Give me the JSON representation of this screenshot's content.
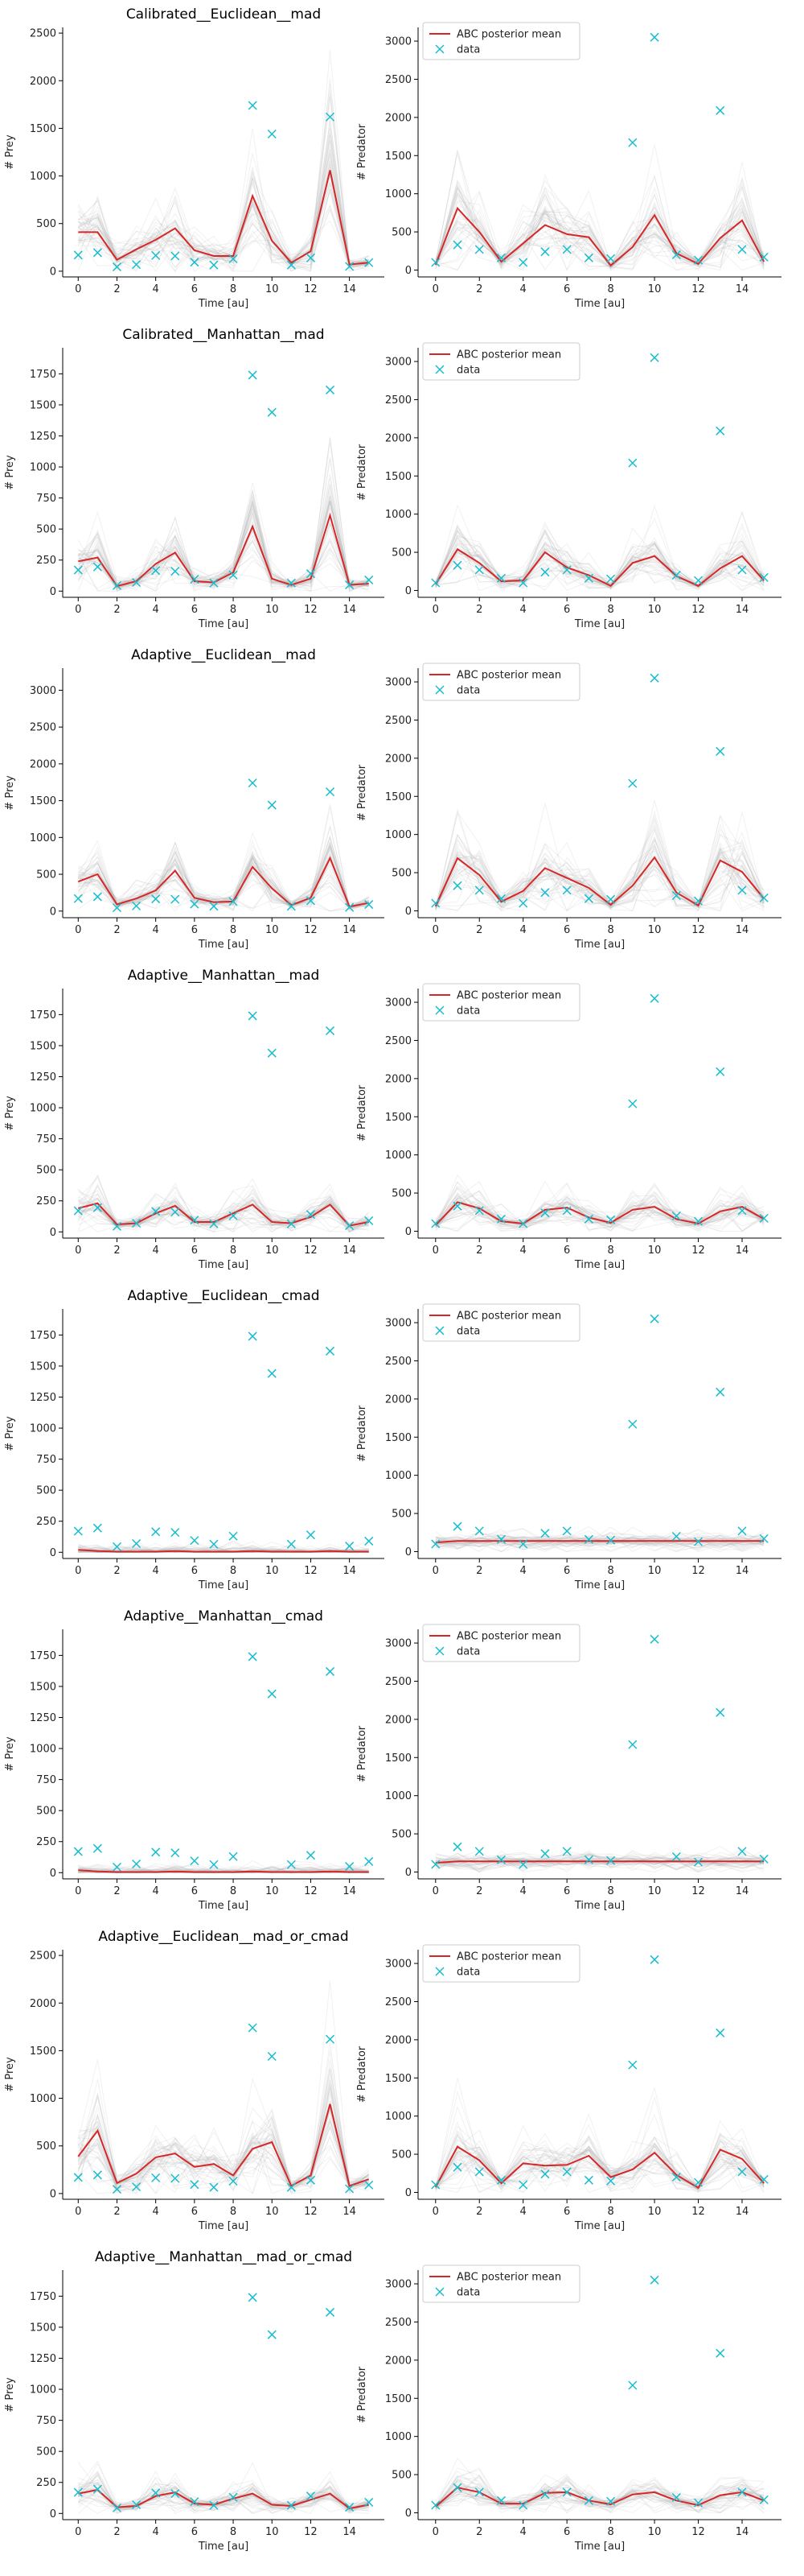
{
  "chart_data": {
    "type": "line",
    "legend": {
      "mean_label": "ABC posterior mean",
      "data_label": "data",
      "position": "upper-left",
      "panels": "predator"
    },
    "colors": {
      "mean": "#d62728",
      "data": "#17becf",
      "samples": "#b0b0b0"
    },
    "x_label": "Time [au]",
    "x_ticks": [
      0,
      2,
      4,
      6,
      8,
      10,
      12,
      14
    ],
    "xlim": [
      -0.8,
      15.8
    ],
    "data": {
      "x": [
        0,
        1,
        2,
        3,
        4,
        5,
        6,
        7,
        8,
        9,
        10,
        11,
        12,
        13,
        14,
        15
      ],
      "prey": [
        170,
        195,
        45,
        70,
        165,
        160,
        95,
        65,
        130,
        1740,
        1440,
        65,
        140,
        1620,
        50,
        90
      ],
      "predator": [
        100,
        330,
        270,
        160,
        100,
        240,
        270,
        160,
        150,
        1670,
        3050,
        200,
        130,
        2090,
        270,
        170
      ]
    },
    "rows": [
      {
        "title": "Calibrated__Euclidean__mad",
        "prey": {
          "ylabel": "# Prey",
          "ylim": [
            -60,
            2560
          ],
          "yticks": [
            0,
            500,
            1000,
            1500,
            2000,
            2500
          ],
          "mean": [
            410,
            410,
            120,
            230,
            330,
            450,
            220,
            160,
            160,
            790,
            320,
            90,
            210,
            1060,
            70,
            90
          ]
        },
        "predator": {
          "ylabel": "# Predator",
          "ylim": [
            -90,
            3180
          ],
          "yticks": [
            0,
            500,
            1000,
            1500,
            2000,
            2500,
            3000
          ],
          "mean": [
            70,
            810,
            500,
            110,
            350,
            590,
            470,
            430,
            60,
            300,
            720,
            220,
            80,
            420,
            650,
            110
          ]
        }
      },
      {
        "title": "Calibrated__Manhattan__mad",
        "prey": {
          "ylabel": "# Prey",
          "ylim": [
            -50,
            1960
          ],
          "yticks": [
            0,
            250,
            500,
            750,
            1000,
            1250,
            1500,
            1750
          ],
          "mean": [
            240,
            270,
            40,
            80,
            220,
            310,
            80,
            70,
            150,
            520,
            100,
            50,
            100,
            610,
            50,
            60
          ]
        },
        "predator": {
          "ylabel": "# Predator",
          "ylim": [
            -90,
            3180
          ],
          "yticks": [
            0,
            500,
            1000,
            1500,
            2000,
            2500,
            3000
          ],
          "mean": [
            80,
            540,
            360,
            120,
            130,
            500,
            300,
            200,
            60,
            360,
            450,
            190,
            60,
            290,
            450,
            130
          ]
        }
      },
      {
        "title": "Adaptive__Euclidean__mad",
        "prey": {
          "ylabel": "# Prey",
          "ylim": [
            -90,
            3300
          ],
          "yticks": [
            0,
            500,
            1000,
            1500,
            2000,
            2500,
            3000
          ],
          "mean": [
            400,
            500,
            90,
            170,
            280,
            550,
            180,
            120,
            130,
            600,
            310,
            80,
            180,
            720,
            60,
            110
          ]
        },
        "predator": {
          "ylabel": "# Predator",
          "ylim": [
            -90,
            3180
          ],
          "yticks": [
            0,
            500,
            1000,
            1500,
            2000,
            2500,
            3000
          ],
          "mean": [
            60,
            690,
            470,
            120,
            260,
            560,
            430,
            300,
            80,
            330,
            700,
            240,
            70,
            660,
            510,
            160
          ]
        }
      },
      {
        "title": "Adaptive__Manhattan__mad",
        "prey": {
          "ylabel": "# Prey",
          "ylim": [
            -50,
            1960
          ],
          "yticks": [
            0,
            250,
            500,
            750,
            1000,
            1250,
            1500,
            1750
          ],
          "mean": [
            190,
            230,
            60,
            70,
            150,
            210,
            80,
            80,
            150,
            220,
            80,
            70,
            120,
            220,
            50,
            80
          ]
        },
        "predator": {
          "ylabel": "# Predator",
          "ylim": [
            -90,
            3180
          ],
          "yticks": [
            0,
            500,
            1000,
            1500,
            2000,
            2500,
            3000
          ],
          "mean": [
            80,
            380,
            300,
            130,
            100,
            280,
            310,
            180,
            110,
            280,
            320,
            160,
            100,
            260,
            320,
            160
          ]
        }
      },
      {
        "title": "Adaptive__Euclidean__cmad",
        "prey": {
          "ylabel": "# Prey",
          "ylim": [
            -50,
            1960
          ],
          "yticks": [
            0,
            250,
            500,
            750,
            1000,
            1250,
            1500,
            1750
          ],
          "mean": [
            20,
            10,
            5,
            5,
            5,
            10,
            5,
            5,
            5,
            10,
            5,
            5,
            5,
            10,
            5,
            5
          ]
        },
        "predator": {
          "ylabel": "# Predator",
          "ylim": [
            -90,
            3180
          ],
          "yticks": [
            0,
            500,
            1000,
            1500,
            2000,
            2500,
            3000
          ],
          "mean": [
            120,
            140,
            140,
            140,
            140,
            140,
            140,
            140,
            140,
            140,
            140,
            140,
            140,
            140,
            140,
            140
          ]
        }
      },
      {
        "title": "Adaptive__Manhattan__cmad",
        "prey": {
          "ylabel": "# Prey",
          "ylim": [
            -50,
            1960
          ],
          "yticks": [
            0,
            250,
            500,
            750,
            1000,
            1250,
            1500,
            1750
          ],
          "mean": [
            20,
            10,
            5,
            5,
            5,
            10,
            5,
            5,
            5,
            10,
            5,
            5,
            5,
            10,
            5,
            5
          ]
        },
        "predator": {
          "ylabel": "# Predator",
          "ylim": [
            -90,
            3180
          ],
          "yticks": [
            0,
            500,
            1000,
            1500,
            2000,
            2500,
            3000
          ],
          "mean": [
            120,
            140,
            140,
            140,
            140,
            140,
            140,
            140,
            140,
            140,
            140,
            140,
            140,
            140,
            140,
            140
          ]
        }
      },
      {
        "title": "Adaptive__Euclidean__mad_or_cmad",
        "prey": {
          "ylabel": "# Prey",
          "ylim": [
            -60,
            2560
          ],
          "yticks": [
            0,
            500,
            1000,
            1500,
            2000,
            2500
          ],
          "mean": [
            390,
            660,
            110,
            210,
            380,
            420,
            280,
            310,
            190,
            470,
            540,
            80,
            190,
            940,
            80,
            150
          ]
        },
        "predator": {
          "ylabel": "# Predator",
          "ylim": [
            -90,
            3180
          ],
          "yticks": [
            0,
            500,
            1000,
            1500,
            2000,
            2500,
            3000
          ],
          "mean": [
            70,
            600,
            420,
            120,
            380,
            350,
            360,
            480,
            200,
            300,
            520,
            230,
            60,
            560,
            440,
            120
          ]
        }
      },
      {
        "title": "Adaptive__Manhattan__mad_or_cmad",
        "prey": {
          "ylabel": "# Prey",
          "ylim": [
            -50,
            1960
          ],
          "yticks": [
            0,
            250,
            500,
            750,
            1000,
            1250,
            1500,
            1750
          ],
          "mean": [
            160,
            190,
            50,
            60,
            140,
            170,
            80,
            70,
            120,
            160,
            70,
            60,
            110,
            160,
            40,
            70
          ]
        },
        "predator": {
          "ylabel": "# Predator",
          "ylim": [
            -90,
            3180
          ],
          "yticks": [
            0,
            500,
            1000,
            1500,
            2000,
            2500,
            3000
          ],
          "mean": [
            80,
            330,
            270,
            120,
            120,
            260,
            270,
            160,
            110,
            240,
            270,
            160,
            100,
            230,
            270,
            160
          ]
        }
      }
    ]
  }
}
